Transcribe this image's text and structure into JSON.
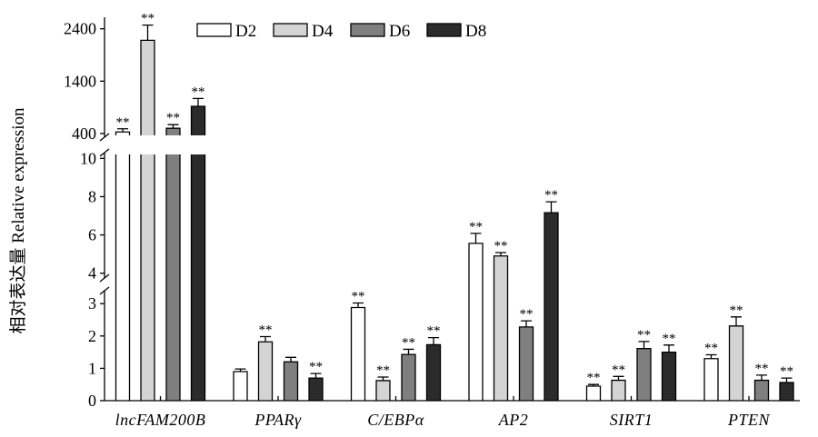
{
  "chart_data": {
    "type": "bar",
    "ylabel": "相对表达量 Relative expression",
    "categories": [
      "lncFAM200B",
      "PPARγ",
      "C/EBPα",
      "AP2",
      "SIRT1",
      "PTEN"
    ],
    "y_axis": {
      "broken": true,
      "segments": [
        {
          "range": [
            0,
            3.4
          ],
          "ticks": [
            0,
            1,
            2,
            3
          ]
        },
        {
          "range": [
            3.75,
            10.3
          ],
          "ticks": [
            4,
            6,
            8,
            10
          ]
        },
        {
          "range": [
            330,
            2620
          ],
          "ticks": [
            400,
            1400,
            2400
          ]
        }
      ]
    },
    "grid": false,
    "legend": {
      "position": "top"
    },
    "series": [
      {
        "name": "D2",
        "color": "#ffffff",
        "values": [
          430,
          0.9,
          2.88,
          5.56,
          0.45,
          1.3
        ],
        "errors": [
          60,
          0.08,
          0.14,
          0.52,
          0.05,
          0.12
        ],
        "significance": [
          "**",
          "",
          "**",
          "**",
          "**",
          "**"
        ]
      },
      {
        "name": "D4",
        "color": "#d4d4d4",
        "values": [
          2180,
          1.82,
          0.62,
          4.9,
          0.63,
          2.31
        ],
        "errors": [
          290,
          0.16,
          0.11,
          0.18,
          0.12,
          0.28
        ],
        "significance": [
          "**",
          "**",
          "**",
          "**",
          "**",
          "**"
        ]
      },
      {
        "name": "D6",
        "color": "#7f7f7f",
        "values": [
          500,
          1.2,
          1.43,
          2.28,
          1.61,
          0.63
        ],
        "errors": [
          70,
          0.14,
          0.16,
          0.19,
          0.22,
          0.16
        ],
        "significance": [
          "**",
          "",
          "**",
          "**",
          "**",
          "**"
        ]
      },
      {
        "name": "D8",
        "color": "#2b2b2b",
        "values": [
          920,
          0.7,
          1.73,
          7.16,
          1.5,
          0.56
        ],
        "errors": [
          150,
          0.14,
          0.22,
          0.57,
          0.22,
          0.14
        ],
        "significance": [
          "**",
          "**",
          "**",
          "**",
          "**",
          "**"
        ]
      }
    ]
  }
}
